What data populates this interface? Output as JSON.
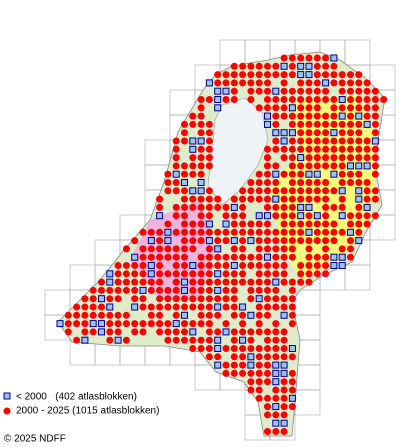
{
  "legend": [
    {
      "label": "< 2000   (402 atlasblokken)"
    },
    {
      "label": "2000 - 2025 (1015 atlasblokken)"
    }
  ],
  "copyright": "© 2025 NDFF"
}
